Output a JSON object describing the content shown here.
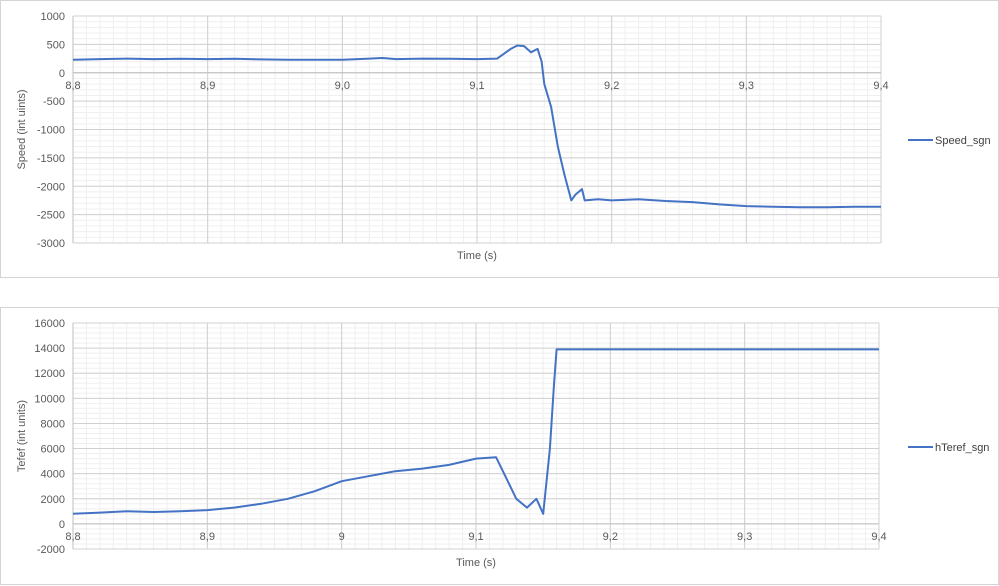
{
  "chart_data": [
    {
      "type": "line",
      "title": "",
      "xlabel": "Time (s)",
      "ylabel": "Speed (int uints)",
      "xlim": [
        8.8,
        9.4
      ],
      "ylim": [
        -3000,
        1000
      ],
      "x_ticks": [
        8.8,
        8.9,
        9.0,
        9.1,
        9.2,
        9.3,
        9.4
      ],
      "x_tick_labels": [
        "8,8",
        "8,9",
        "9,0",
        "9,1",
        "9,2",
        "9,3",
        "9,4"
      ],
      "y_ticks": [
        -3000,
        -2500,
        -2000,
        -1500,
        -1000,
        -500,
        0,
        500,
        1000
      ],
      "y_tick_labels": [
        "-3000",
        "-2500",
        "-2000",
        "-1500",
        "-1000",
        "-500",
        "0",
        "500",
        "1000"
      ],
      "x_axis_at_y": 0,
      "grid": true,
      "legend_position": "right",
      "series": [
        {
          "name": "Speed_sgn",
          "color": "#4472C4",
          "x": [
            8.8,
            8.82,
            8.84,
            8.86,
            8.88,
            8.9,
            8.92,
            8.94,
            8.96,
            8.98,
            9.0,
            9.02,
            9.03,
            9.04,
            9.06,
            9.08,
            9.1,
            9.115,
            9.125,
            9.13,
            9.135,
            9.14,
            9.145,
            9.148,
            9.15,
            9.155,
            9.16,
            9.165,
            9.17,
            9.173,
            9.178,
            9.18,
            9.19,
            9.2,
            9.22,
            9.24,
            9.26,
            9.28,
            9.3,
            9.32,
            9.34,
            9.36,
            9.38,
            9.4
          ],
          "y": [
            230,
            240,
            250,
            240,
            245,
            240,
            245,
            235,
            230,
            230,
            230,
            250,
            260,
            240,
            250,
            245,
            240,
            250,
            420,
            480,
            470,
            360,
            420,
            200,
            -200,
            -600,
            -1300,
            -1800,
            -2250,
            -2150,
            -2050,
            -2250,
            -2230,
            -2250,
            -2230,
            -2260,
            -2280,
            -2320,
            -2350,
            -2360,
            -2370,
            -2370,
            -2360,
            -2360
          ]
        }
      ]
    },
    {
      "type": "line",
      "title": "",
      "xlabel": "Time (s)",
      "ylabel": "Tefef (int units)",
      "xlim": [
        8.8,
        9.4
      ],
      "ylim": [
        -2000,
        16000
      ],
      "x_ticks": [
        8.8,
        8.9,
        9.0,
        9.1,
        9.2,
        9.3,
        9.4
      ],
      "x_tick_labels": [
        "8,8",
        "8,9",
        "9",
        "9,1",
        "9,2",
        "9,3",
        "9,4"
      ],
      "y_ticks": [
        -2000,
        0,
        2000,
        4000,
        6000,
        8000,
        10000,
        12000,
        14000,
        16000
      ],
      "y_tick_labels": [
        "-2000",
        "0",
        "2000",
        "4000",
        "6000",
        "8000",
        "10000",
        "12000",
        "14000",
        "16000"
      ],
      "x_axis_at_y": 0,
      "grid": true,
      "legend_position": "right",
      "series": [
        {
          "name": "hTeref_sgn",
          "color": "#4472C4",
          "x": [
            8.8,
            8.82,
            8.84,
            8.86,
            8.88,
            8.9,
            8.92,
            8.94,
            8.96,
            8.98,
            9.0,
            9.02,
            9.04,
            9.06,
            9.08,
            9.1,
            9.115,
            9.12,
            9.13,
            9.138,
            9.145,
            9.15,
            9.155,
            9.158,
            9.16,
            9.2,
            9.25,
            9.3,
            9.35,
            9.4
          ],
          "y": [
            800,
            900,
            1000,
            950,
            1000,
            1100,
            1300,
            1600,
            2000,
            2600,
            3400,
            3800,
            4200,
            4400,
            4700,
            5200,
            5300,
            4200,
            2000,
            1300,
            2000,
            800,
            6000,
            11000,
            13900,
            13900,
            13900,
            13900,
            13900,
            13900
          ]
        }
      ]
    }
  ]
}
